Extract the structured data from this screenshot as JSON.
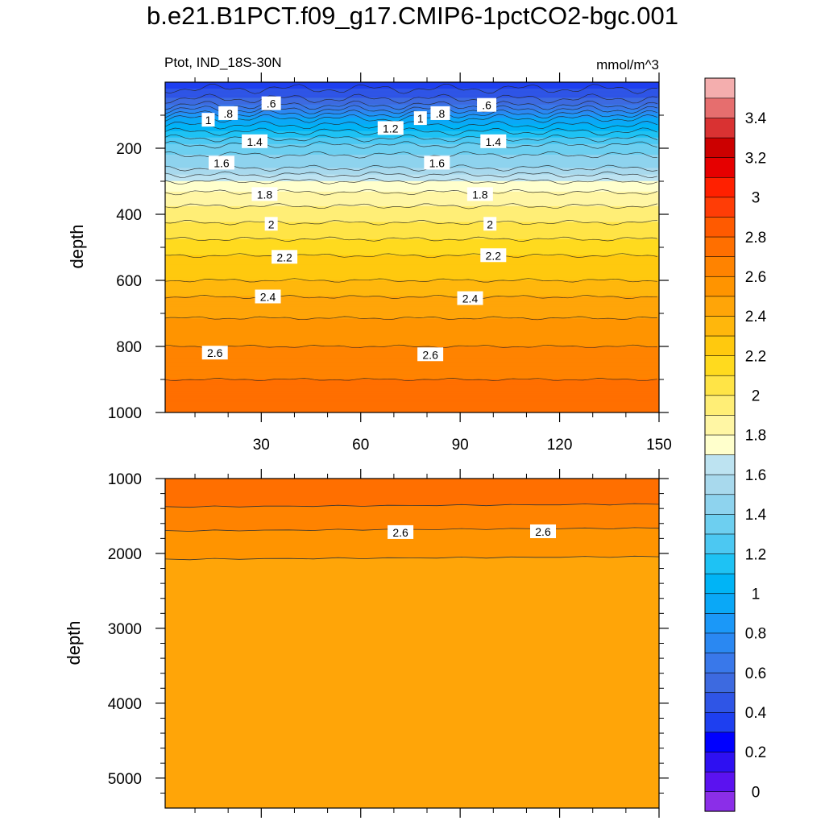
{
  "title": "b.e21.B1PCT.f09_g17.CMIP6-1pctCO2-bgc.001",
  "chart_data": [
    {
      "type": "heatmap",
      "panel": "upper",
      "left_label": "Ptot, IND_18S-30N",
      "right_label": "mmol/m^3",
      "ylabel": "depth",
      "xlim": [
        1,
        150
      ],
      "ylim": [
        1000,
        0
      ],
      "x_ticks": [
        30,
        60,
        90,
        120,
        150
      ],
      "x_tick_labels": [
        "30",
        "60",
        "90",
        "120",
        "150"
      ],
      "y_ticks": [
        200,
        400,
        600,
        800,
        1000
      ],
      "y_tick_labels": [
        "200",
        "400",
        "600",
        "800",
        "1000"
      ],
      "contour_levels": [
        0.6,
        0.8,
        1,
        1.2,
        1.4,
        1.6,
        1.8,
        2,
        2.2,
        2.4,
        2.6
      ],
      "profile": {
        "depth": [
          0,
          20,
          50,
          70,
          90,
          110,
          130,
          150,
          170,
          190,
          220,
          260,
          300,
          350,
          400,
          450,
          500,
          550,
          600,
          650,
          700,
          750,
          800,
          850,
          900,
          1000
        ],
        "value": [
          0.3,
          0.4,
          0.5,
          0.6,
          0.75,
          0.9,
          1.0,
          1.1,
          1.2,
          1.3,
          1.4,
          1.5,
          1.7,
          1.85,
          1.95,
          2.05,
          2.15,
          2.25,
          2.3,
          2.4,
          2.48,
          2.55,
          2.6,
          2.65,
          2.7,
          2.72
        ]
      },
      "contour_labels": [
        {
          "text": ".6",
          "x": 33,
          "depth": 65
        },
        {
          "text": ".6",
          "x": 98,
          "depth": 70
        },
        {
          "text": ".8",
          "x": 20,
          "depth": 95
        },
        {
          "text": ".8",
          "x": 84,
          "depth": 95
        },
        {
          "text": "1",
          "x": 14,
          "depth": 115
        },
        {
          "text": "1",
          "x": 78,
          "depth": 110
        },
        {
          "text": "1.2",
          "x": 69,
          "depth": 140
        },
        {
          "text": "1.4",
          "x": 28,
          "depth": 180
        },
        {
          "text": "1.4",
          "x": 100,
          "depth": 180
        },
        {
          "text": "1.6",
          "x": 18,
          "depth": 245
        },
        {
          "text": "1.6",
          "x": 83,
          "depth": 245
        },
        {
          "text": "1.8",
          "x": 31,
          "depth": 340
        },
        {
          "text": "1.8",
          "x": 96,
          "depth": 340
        },
        {
          "text": "2",
          "x": 33,
          "depth": 430
        },
        {
          "text": "2",
          "x": 99,
          "depth": 430
        },
        {
          "text": "2.2",
          "x": 37,
          "depth": 530
        },
        {
          "text": "2.2",
          "x": 100,
          "depth": 525
        },
        {
          "text": "2.4",
          "x": 32,
          "depth": 650
        },
        {
          "text": "2.4",
          "x": 93,
          "depth": 655
        },
        {
          "text": "2.6",
          "x": 16,
          "depth": 820
        },
        {
          "text": "2.6",
          "x": 81,
          "depth": 825
        }
      ]
    },
    {
      "type": "heatmap",
      "panel": "lower",
      "ylabel": "depth",
      "xlim": [
        1,
        150
      ],
      "ylim": [
        5400,
        1000
      ],
      "y_ticks": [
        1000,
        2000,
        3000,
        4000,
        5000
      ],
      "y_tick_labels": [
        "1000",
        "2000",
        "3000",
        "4000",
        "5000"
      ],
      "x_ticks": [
        30,
        60,
        90,
        120,
        150
      ],
      "contour_levels": [
        2.6
      ],
      "bands": [
        {
          "from_depth": 1000,
          "to_depth": 1400,
          "value": 2.75
        },
        {
          "from_depth": 1400,
          "to_depth": 1720,
          "value": 2.65
        },
        {
          "from_depth": 1720,
          "to_depth": 2100,
          "value": 2.55
        },
        {
          "from_depth": 2100,
          "to_depth": 5400,
          "value": 2.45
        }
      ],
      "contour_labels": [
        {
          "text": "2.6",
          "x": 72,
          "depth": 1720
        },
        {
          "text": "2.6",
          "x": 115,
          "depth": 1710
        }
      ]
    }
  ],
  "colorbar": {
    "levels": [
      0,
      0.1,
      0.2,
      0.3,
      0.4,
      0.5,
      0.6,
      0.7,
      0.8,
      0.9,
      1,
      1.1,
      1.2,
      1.3,
      1.4,
      1.5,
      1.6,
      1.7,
      1.8,
      1.9,
      2,
      2.1,
      2.2,
      2.3,
      2.4,
      2.5,
      2.6,
      2.7,
      2.8,
      2.9,
      3,
      3.1,
      3.2,
      3.3,
      3.4,
      3.5
    ],
    "tick_labels": [
      "0",
      "0.2",
      "0.4",
      "0.6",
      "0.8",
      "1",
      "1.2",
      "1.4",
      "1.6",
      "1.8",
      "2",
      "2.2",
      "2.4",
      "2.6",
      "2.8",
      "3",
      "3.2",
      "3.4"
    ],
    "colors": [
      "#8b2ee8",
      "#5b12f0",
      "#2e10f2",
      "#0000ff",
      "#1e3ff0",
      "#2f55e6",
      "#3d6ae0",
      "#3978ea",
      "#2a88f2",
      "#1b98f8",
      "#0aa8f7",
      "#00b4f6",
      "#1ec2f4",
      "#4cc8f2",
      "#6dcff0",
      "#8ed3ee",
      "#a8d9ed",
      "#bde3f1",
      "#ffffcc",
      "#fff6a4",
      "#ffee76",
      "#ffe446",
      "#ffda1e",
      "#ffc90e",
      "#ffb70c",
      "#ffa508",
      "#ff9400",
      "#ff8300",
      "#ff6f00",
      "#ff5a00",
      "#ff3d06",
      "#ff2000",
      "#e60000",
      "#cc0000",
      "#d93232",
      "#e66e6e",
      "#f4aeae"
    ]
  }
}
